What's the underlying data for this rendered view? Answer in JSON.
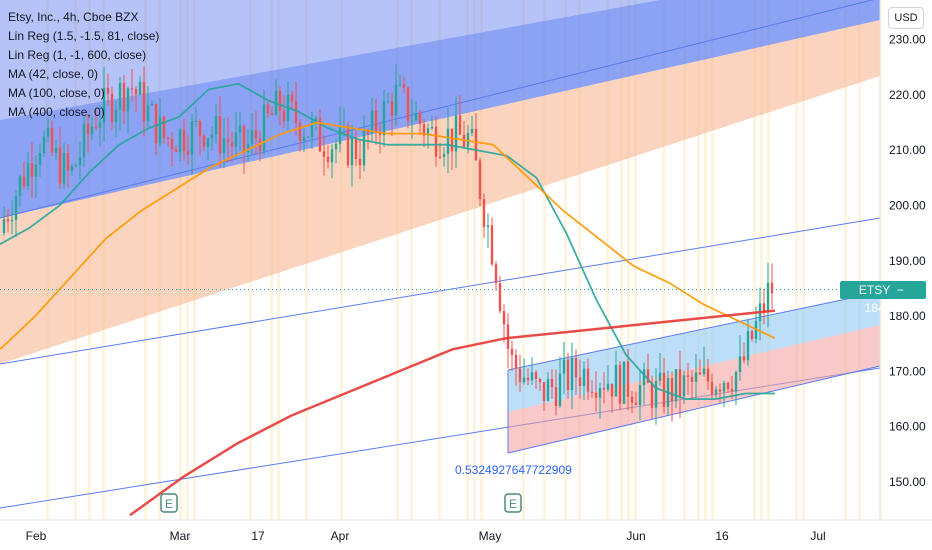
{
  "header": {
    "symbol_line": "Etsy, Inc., 4h, Cboe BZX",
    "indicators": [
      "Lin Reg (1.5, -1.5, 81, close)",
      "Lin Reg (1, -1, 600, close)",
      "MA (42, close, 0)",
      "MA (100, close, 0)",
      "MA (400, close, 0)"
    ]
  },
  "currency_button": "USD",
  "price_tag": {
    "ticker": "ETSY",
    "value": "184.81"
  },
  "annotation": "0.5324927647722909",
  "earnings_markers": [
    {
      "label": "E",
      "date": "Mar"
    },
    {
      "label": "E",
      "date": "May"
    }
  ],
  "colors": {
    "candle_up": "#26a69a",
    "candle_down": "#ef5350",
    "ma42": "#26a69a",
    "ma100": "#ff9800",
    "ma400": "#e53935",
    "channel_upper": "#5b7bef",
    "channel_lower": "#f7b08a",
    "short_upper": "#90c8f5",
    "short_lower": "#f5a3a3"
  },
  "chart_data": {
    "type": "candlestick",
    "xlabel": "",
    "ylabel": "",
    "x_ticks": [
      "Feb",
      "Mar",
      "17",
      "Apr",
      "May",
      "Jun",
      "16",
      "Jul"
    ],
    "y_ticks": [
      150,
      160,
      170,
      180,
      190,
      200,
      210,
      220,
      230
    ],
    "ylim": [
      143.5,
      235
    ],
    "last_price": 184.81,
    "grid": false,
    "series": [
      {
        "name": "MA (42, close, 0)",
        "values": [
          193,
          196,
          200,
          206,
          211,
          214,
          216,
          221,
          222,
          219,
          217,
          214,
          212,
          211,
          211,
          211,
          210,
          209,
          205,
          195,
          183,
          173,
          167,
          165,
          165,
          166,
          166
        ]
      },
      {
        "name": "MA (100, close, 0)",
        "values": [
          174,
          180,
          187,
          194,
          199,
          203,
          207,
          210,
          213,
          215,
          214,
          213,
          213,
          212,
          211,
          205,
          199,
          194,
          189,
          186,
          182,
          179,
          176
        ]
      },
      {
        "name": "MA (400, close, 0)",
        "values": [
          144,
          151,
          157,
          162,
          166,
          170,
          174,
          176,
          177,
          178,
          179,
          180,
          181
        ]
      }
    ]
  }
}
